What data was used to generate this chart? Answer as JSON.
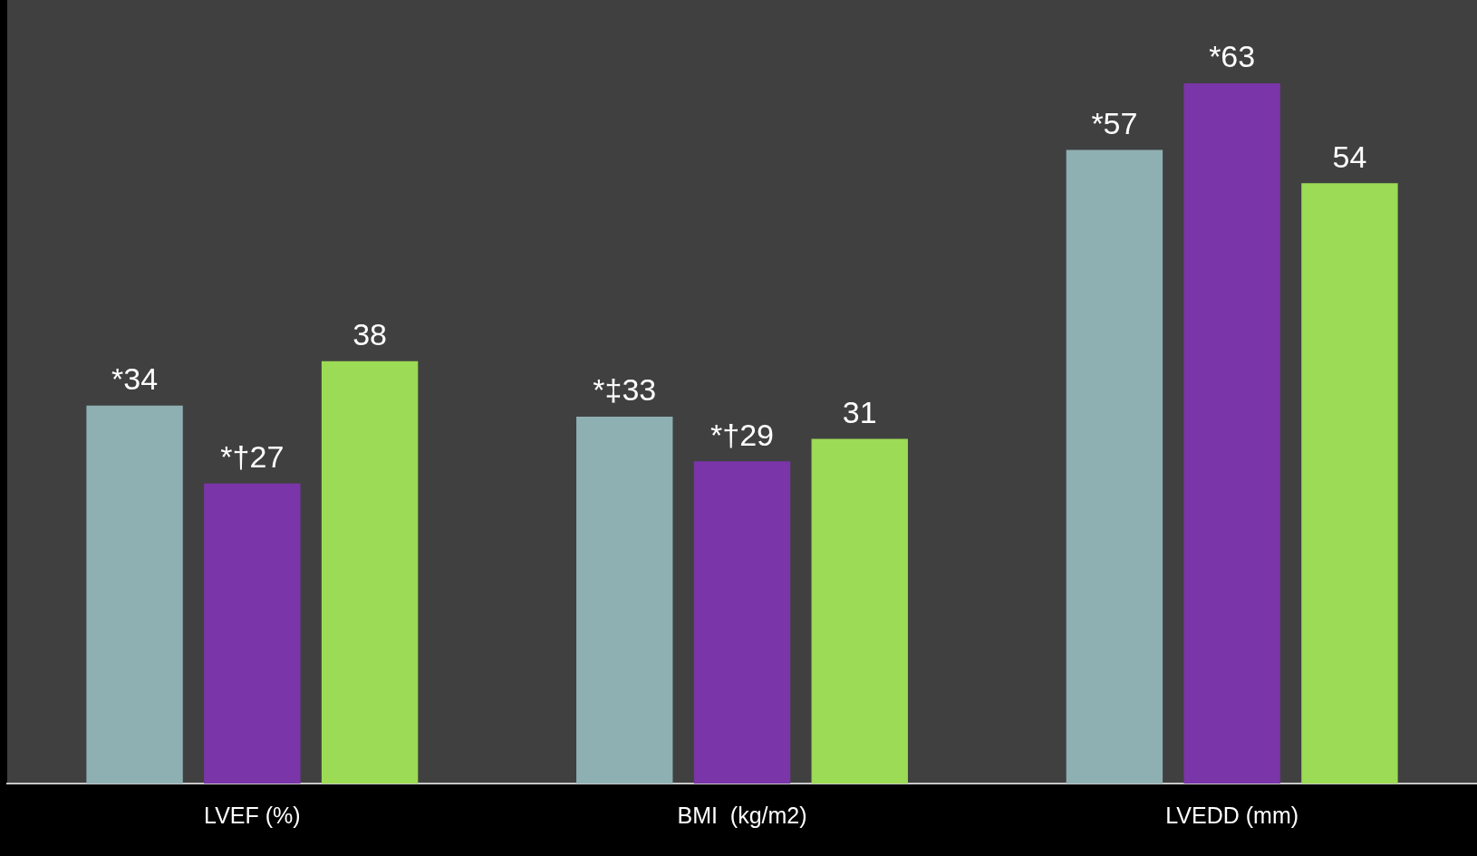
{
  "chart_data": {
    "type": "bar",
    "categories": [
      "LVEF (%)",
      "BMI  (kg/m2)",
      "LVEDD (mm)"
    ],
    "series": [
      {
        "color": "#8fb0b3",
        "values": [
          34,
          33,
          57
        ],
        "value_labels": [
          "*34",
          "*‡33",
          "*57"
        ]
      },
      {
        "color": "#7a35a8",
        "values": [
          27,
          29,
          63
        ],
        "value_labels": [
          "*†27",
          "*†29",
          "*63"
        ]
      },
      {
        "color": "#9cdb55",
        "values": [
          38,
          31,
          54
        ],
        "value_labels": [
          "38",
          "31",
          "54"
        ]
      }
    ],
    "grid": false,
    "legend": false
  }
}
